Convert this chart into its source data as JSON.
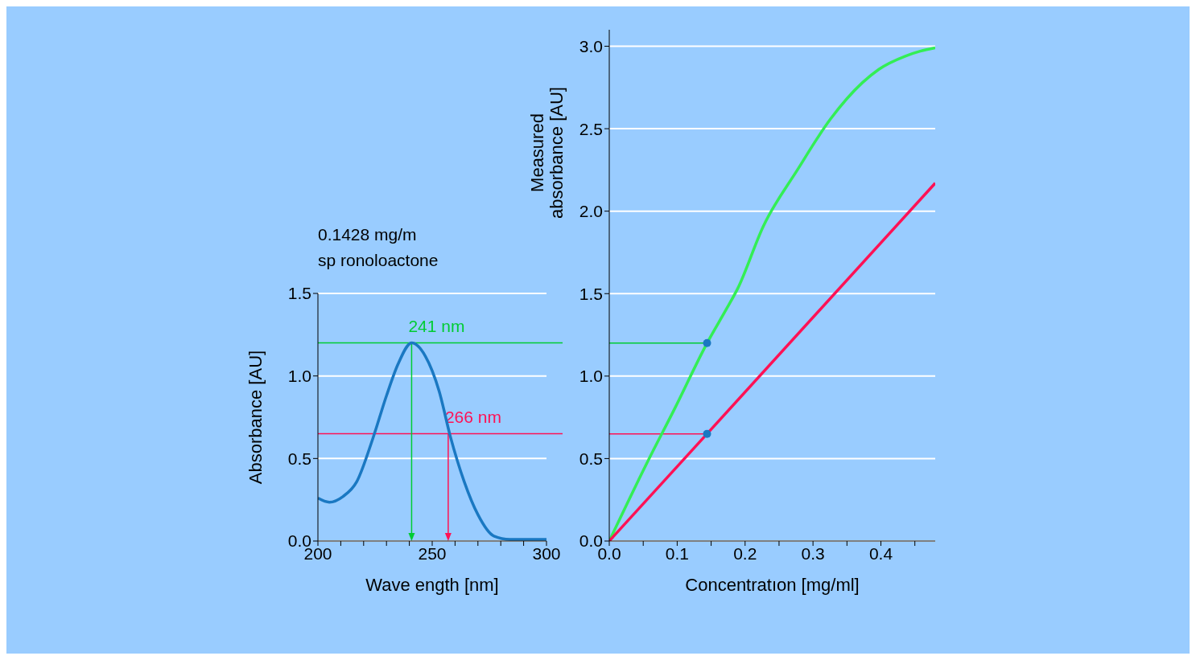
{
  "chart_data": [
    {
      "type": "line",
      "title": "0.1428 mg/m",
      "subtitle": "sp ronoloactone",
      "xlabel": "Wave ength [nm]",
      "ylabel": "Absorbance [AU]",
      "xlim": [
        200,
        300
      ],
      "xticks": [
        200,
        {
          "value": 210,
          "label": null
        },
        {
          "value": 220,
          "label": null
        },
        {
          "value": 230,
          "label": null
        },
        {
          "value": 240,
          "label": null
        },
        250,
        {
          "value": 260,
          "label": null
        },
        {
          "value": 270,
          "label": null
        },
        {
          "value": 280,
          "label": null
        },
        {
          "value": 290,
          "label": null
        },
        300
      ],
      "ylim": [
        0,
        1.5
      ],
      "yticks": [
        {
          "value": 0,
          "label": "0.0"
        },
        0.5,
        {
          "value": 1,
          "label": "1.0"
        },
        1.5
      ],
      "grid": "y",
      "marker": "none",
      "series": [
        {
          "color": "#1a78c2",
          "x": [
            200,
            205,
            211,
            217,
            224,
            230,
            235,
            241,
            247,
            253,
            258,
            264,
            270,
            277,
            284,
            300
          ],
          "values": [
            0.26,
            0.235,
            0.27,
            0.36,
            0.62,
            0.88,
            1.07,
            1.2,
            1.12,
            0.91,
            0.63,
            0.36,
            0.16,
            0.03,
            0.01,
            0.01
          ]
        }
      ],
      "ref_lines": [
        {
          "axis": "y",
          "value": 1.2,
          "label": "241 nm",
          "color": "#00cc33"
        },
        {
          "axis": "y",
          "value": 0.65,
          "label": "266 nm",
          "color": "#ff1155"
        },
        {
          "axis": "x",
          "value": 241,
          "color": "#00cc33"
        },
        {
          "axis": "x",
          "value": 257,
          "color": "#ff1155"
        }
      ]
    },
    {
      "type": "line",
      "xlabel": "Concentratıon [mg/ml]",
      "ylabel": "Measured\nabsorbance [AU]",
      "xlim": [
        0,
        0.48
      ],
      "xticks": [
        {
          "value": 0,
          "label": "0.0"
        },
        {
          "value": 0.05,
          "label": null
        },
        0.1,
        {
          "value": 0.15,
          "label": null
        },
        0.2,
        {
          "value": 0.25,
          "label": null
        },
        0.3,
        {
          "value": 0.35,
          "label": null
        },
        0.4,
        {
          "value": 0.45,
          "label": null
        }
      ],
      "ylim": [
        0,
        3.1
      ],
      "yticks": [
        {
          "value": 0,
          "label": "0.0"
        },
        0.5,
        {
          "value": 1,
          "label": "1.0"
        },
        1.5,
        {
          "value": 2,
          "label": "2.0"
        },
        2.5,
        {
          "value": 3,
          "label": "3.0"
        }
      ],
      "grid": "y",
      "marker": "none",
      "series": [
        {
          "color": "#33ee55",
          "x": [
            0,
            0.0575,
            0.096,
            0.144,
            0.173,
            0.189,
            0.227,
            0.277,
            0.326,
            0.373,
            0.397,
            0.436,
            0.458,
            0.48
          ],
          "values": [
            0,
            0.49,
            0.8,
            1.2,
            1.41,
            1.53,
            1.91,
            2.25,
            2.56,
            2.78,
            2.86,
            2.94,
            2.97,
            2.99
          ]
        },
        {
          "color": "#ff1155",
          "x": [
            0,
            0.144,
            0.48
          ],
          "values": [
            0,
            0.65,
            2.17
          ]
        },
        {
          "type": "scatter",
          "color": "#1a78c2",
          "marker": "circle",
          "x": [
            0.144,
            0.144
          ],
          "values": [
            1.2,
            0.65
          ]
        }
      ],
      "ref_lines": [
        {
          "axis": "y",
          "value": 1.2,
          "color": "#00cc33"
        },
        {
          "axis": "y",
          "value": 0.65,
          "color": "#ff1155"
        }
      ]
    }
  ]
}
